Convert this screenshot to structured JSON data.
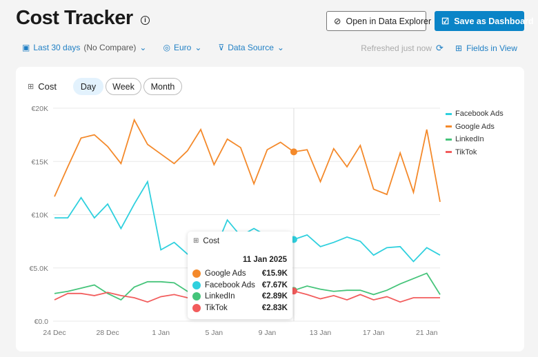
{
  "header": {
    "title": "Cost Tracker",
    "explore_label": "Open in Data Explorer",
    "save_label": "Save as Dashboard"
  },
  "filters": {
    "date_range": "Last 30 days",
    "compare": "(No Compare)",
    "currency": "Euro",
    "data_source": "Data Source",
    "refreshed": "Refreshed just now",
    "fields": "Fields in View"
  },
  "card": {
    "metric": "Cost",
    "granularity": [
      "Day",
      "Week",
      "Month"
    ],
    "active": "Day"
  },
  "tooltip": {
    "title": "Cost",
    "date": "11 Jan 2025",
    "rows": [
      {
        "name": "Google Ads",
        "value": "€15.9K",
        "color": "#f4892a"
      },
      {
        "name": "Facebook Ads",
        "value": "€7.67K",
        "color": "#2fd0de"
      },
      {
        "name": "LinkedIn",
        "value": "€2.89K",
        "color": "#45c47a"
      },
      {
        "name": "TikTok",
        "value": "€2.83K",
        "color": "#f25c5c"
      }
    ]
  },
  "chart_data": {
    "type": "line",
    "ylim": [
      0,
      20000
    ],
    "yticks": [
      "€0.0",
      "€5.0K",
      "€10K",
      "€15K",
      "€20K"
    ],
    "xticks": [
      "24 Dec",
      "28 Dec",
      "1 Jan",
      "5 Jan",
      "9 Jan",
      "13 Jan",
      "17 Jan",
      "21 Jan"
    ],
    "x_start": "24 Dec 2024",
    "days": 30,
    "highlight_index": 18,
    "series": [
      {
        "name": "Facebook Ads",
        "color": "#2fd0de",
        "values": [
          9.7,
          9.7,
          11.6,
          9.7,
          11.0,
          8.7,
          11.0,
          13.1,
          6.7,
          7.4,
          6.3,
          6.4,
          6.5,
          9.5,
          8.0,
          8.7,
          8.0,
          8.1,
          7.67,
          8.1,
          7.0,
          7.4,
          7.9,
          7.5,
          6.2,
          6.9,
          7.0,
          5.6,
          6.9,
          6.2
        ]
      },
      {
        "name": "Google Ads",
        "color": "#f4892a",
        "values": [
          11.7,
          14.5,
          17.2,
          17.5,
          16.4,
          14.8,
          18.9,
          16.6,
          15.7,
          14.8,
          16.0,
          18.0,
          14.7,
          17.1,
          16.3,
          12.9,
          16.1,
          16.8,
          15.9,
          16.1,
          13.1,
          16.2,
          14.5,
          16.5,
          12.4,
          11.9,
          15.8,
          12.1,
          18.0,
          11.2
        ]
      },
      {
        "name": "LinkedIn",
        "color": "#45c47a",
        "values": [
          2.6,
          2.8,
          3.1,
          3.4,
          2.6,
          2.0,
          3.2,
          3.7,
          3.7,
          3.6,
          2.8,
          3.3,
          3.0,
          3.0,
          3.0,
          3.1,
          3.2,
          3.0,
          2.89,
          3.3,
          3.0,
          2.8,
          2.9,
          2.9,
          2.5,
          2.9,
          3.5,
          4.0,
          4.5,
          2.5
        ]
      },
      {
        "name": "TikTok",
        "color": "#f25c5c",
        "values": [
          2.0,
          2.6,
          2.6,
          2.4,
          2.7,
          2.4,
          2.2,
          1.8,
          2.3,
          2.5,
          2.2,
          2.4,
          2.3,
          2.5,
          2.4,
          2.2,
          2.4,
          2.5,
          2.83,
          2.5,
          2.1,
          2.4,
          2.0,
          2.5,
          2.0,
          2.3,
          1.8,
          2.2,
          2.2,
          2.2
        ]
      }
    ],
    "value_unit": "thousand EUR",
    "legend_position": "right"
  }
}
